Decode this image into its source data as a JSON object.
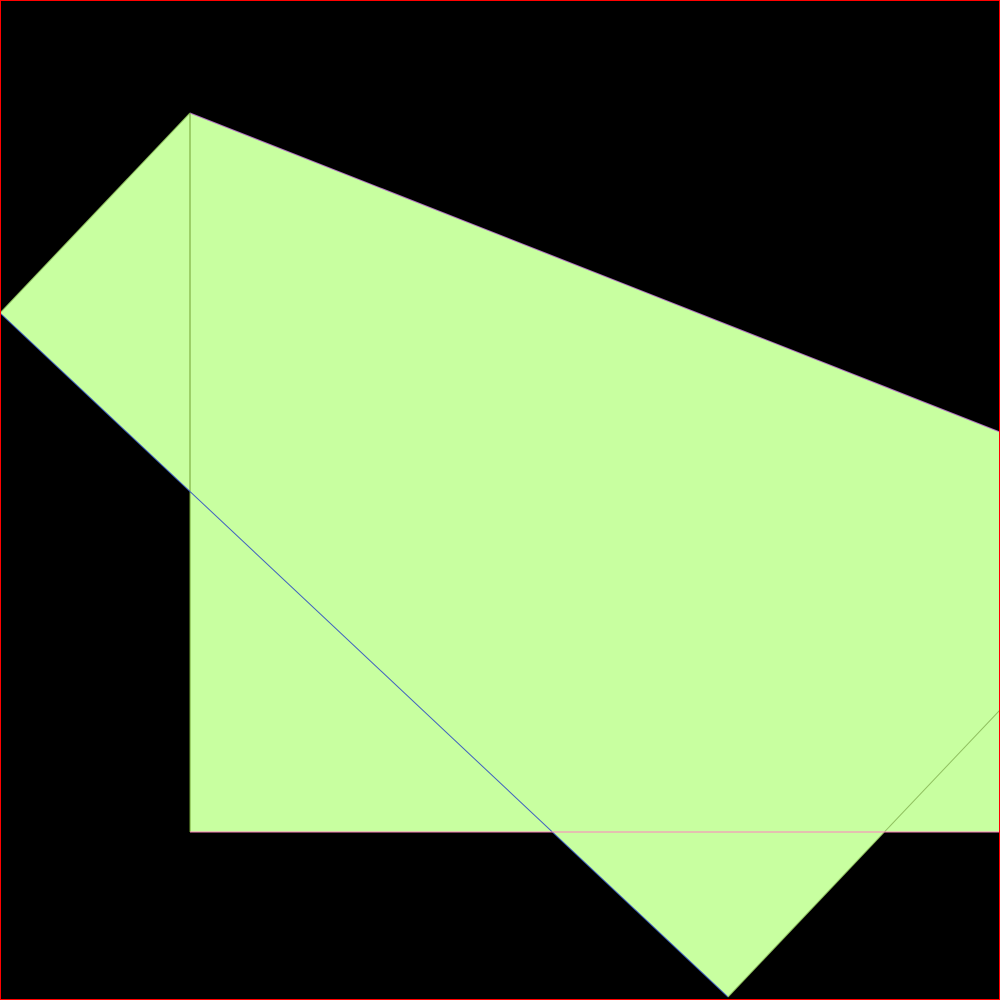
{
  "colors": {
    "background": "#000000",
    "frame": "#ff0000",
    "fill": "#c8ffa0",
    "edge_purple": "#b070c0",
    "edge_green": "#70a030",
    "edge_blue": "#4060c0",
    "edge_pink": "#ff80c0"
  },
  "shapes": [
    {
      "name": "angled-quadrilateral",
      "kind": "polygon"
    },
    {
      "name": "rectangle",
      "kind": "rect"
    }
  ]
}
